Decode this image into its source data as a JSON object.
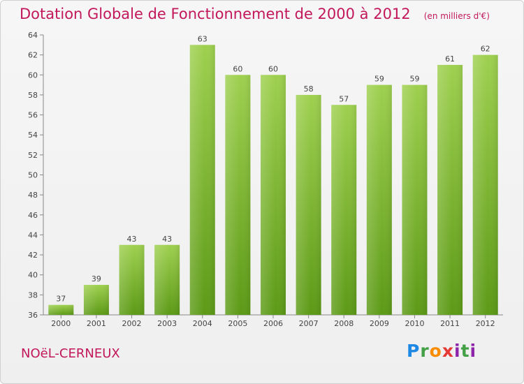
{
  "header": {
    "title": "Dotation Globale de Fonctionnement de 2000 à 2012",
    "unit": "(en milliers d'€)"
  },
  "footer": {
    "commune": "NOëL-CERNEUX",
    "logo": "Proxiti"
  },
  "colors": {
    "title": "#c2185b",
    "bar_top": "#9ed04f",
    "bar_bottom": "#5c9a16"
  },
  "chart_data": {
    "type": "bar",
    "title": "Dotation Globale de Fonctionnement de 2000 à 2012",
    "xlabel": "",
    "ylabel": "",
    "categories": [
      "2000",
      "2001",
      "2002",
      "2003",
      "2004",
      "2005",
      "2006",
      "2007",
      "2008",
      "2009",
      "2010",
      "2011",
      "2012"
    ],
    "values": [
      37,
      39,
      43,
      43,
      63,
      60,
      60,
      58,
      57,
      59,
      59,
      61,
      62
    ],
    "ylim": [
      36,
      64
    ],
    "yticks": [
      36,
      38,
      40,
      42,
      44,
      46,
      48,
      50,
      52,
      54,
      56,
      58,
      60,
      62,
      64
    ],
    "grid": false,
    "data_labels": true
  }
}
